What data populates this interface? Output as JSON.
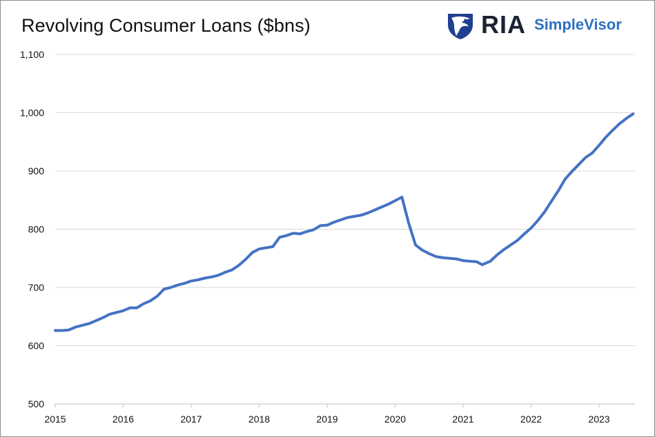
{
  "brand": {
    "name": "RIA",
    "product": "SimpleVisor",
    "logo_icon": "eagle-shield-icon",
    "colors": {
      "dark": "#1a2233",
      "accent": "#2e6fc1"
    }
  },
  "chart_data": {
    "type": "line",
    "title": "Revolving Consumer Loans ($bns)",
    "xlabel": "",
    "ylabel": "",
    "xlim": [
      2015,
      2023.55
    ],
    "ylim": [
      500,
      1100
    ],
    "y_ticks": [
      500,
      600,
      700,
      800,
      900,
      1000,
      1100
    ],
    "y_tick_labels": [
      "500",
      "600",
      "700",
      "800",
      "900",
      "1,000",
      "1,100"
    ],
    "x_ticks": [
      2015,
      2016,
      2017,
      2018,
      2019,
      2020,
      2021,
      2022,
      2023
    ],
    "x_tick_labels": [
      "2015",
      "2016",
      "2017",
      "2018",
      "2019",
      "2020",
      "2021",
      "2022",
      "2023"
    ],
    "grid": {
      "horizontal": true,
      "vertical": false
    },
    "legend": "none",
    "series": [
      {
        "color": "#4472c4",
        "x": [
          2015.0,
          2015.1,
          2015.2,
          2015.3,
          2015.4,
          2015.5,
          2015.6,
          2015.7,
          2015.8,
          2015.9,
          2016.0,
          2016.1,
          2016.2,
          2016.3,
          2016.4,
          2016.5,
          2016.6,
          2016.7,
          2016.8,
          2016.9,
          2017.0,
          2017.1,
          2017.2,
          2017.3,
          2017.4,
          2017.5,
          2017.6,
          2017.7,
          2017.8,
          2017.9,
          2018.0,
          2018.1,
          2018.2,
          2018.3,
          2018.4,
          2018.5,
          2018.6,
          2018.7,
          2018.8,
          2018.9,
          2019.0,
          2019.1,
          2019.2,
          2019.3,
          2019.4,
          2019.5,
          2019.6,
          2019.7,
          2019.8,
          2019.9,
          2020.0,
          2020.1,
          2020.2,
          2020.3,
          2020.4,
          2020.5,
          2020.6,
          2020.7,
          2020.8,
          2020.9,
          2021.0,
          2021.1,
          2021.2,
          2021.28,
          2021.4,
          2021.5,
          2021.6,
          2021.7,
          2021.8,
          2021.9,
          2022.0,
          2022.1,
          2022.2,
          2022.3,
          2022.4,
          2022.5,
          2022.6,
          2022.7,
          2022.8,
          2022.9,
          2023.0,
          2023.1,
          2023.2,
          2023.3,
          2023.4,
          2023.5
        ],
        "values": [
          626,
          626,
          627,
          632,
          635,
          638,
          643,
          648,
          654,
          657,
          660,
          665,
          665,
          672,
          677,
          685,
          697,
          700,
          704,
          707,
          711,
          713,
          716,
          718,
          721,
          726,
          730,
          738,
          748,
          760,
          766,
          768,
          770,
          786,
          789,
          793,
          792,
          796,
          799,
          806,
          807,
          812,
          816,
          820,
          822,
          824,
          828,
          833,
          838,
          843,
          849,
          855,
          810,
          773,
          764,
          758,
          753,
          751,
          750,
          749,
          746,
          745,
          744,
          739,
          745,
          756,
          765,
          773,
          781,
          792,
          802,
          815,
          830,
          848,
          866,
          886,
          899,
          911,
          923,
          931,
          944,
          958,
          970,
          981,
          990,
          998
        ]
      }
    ]
  }
}
